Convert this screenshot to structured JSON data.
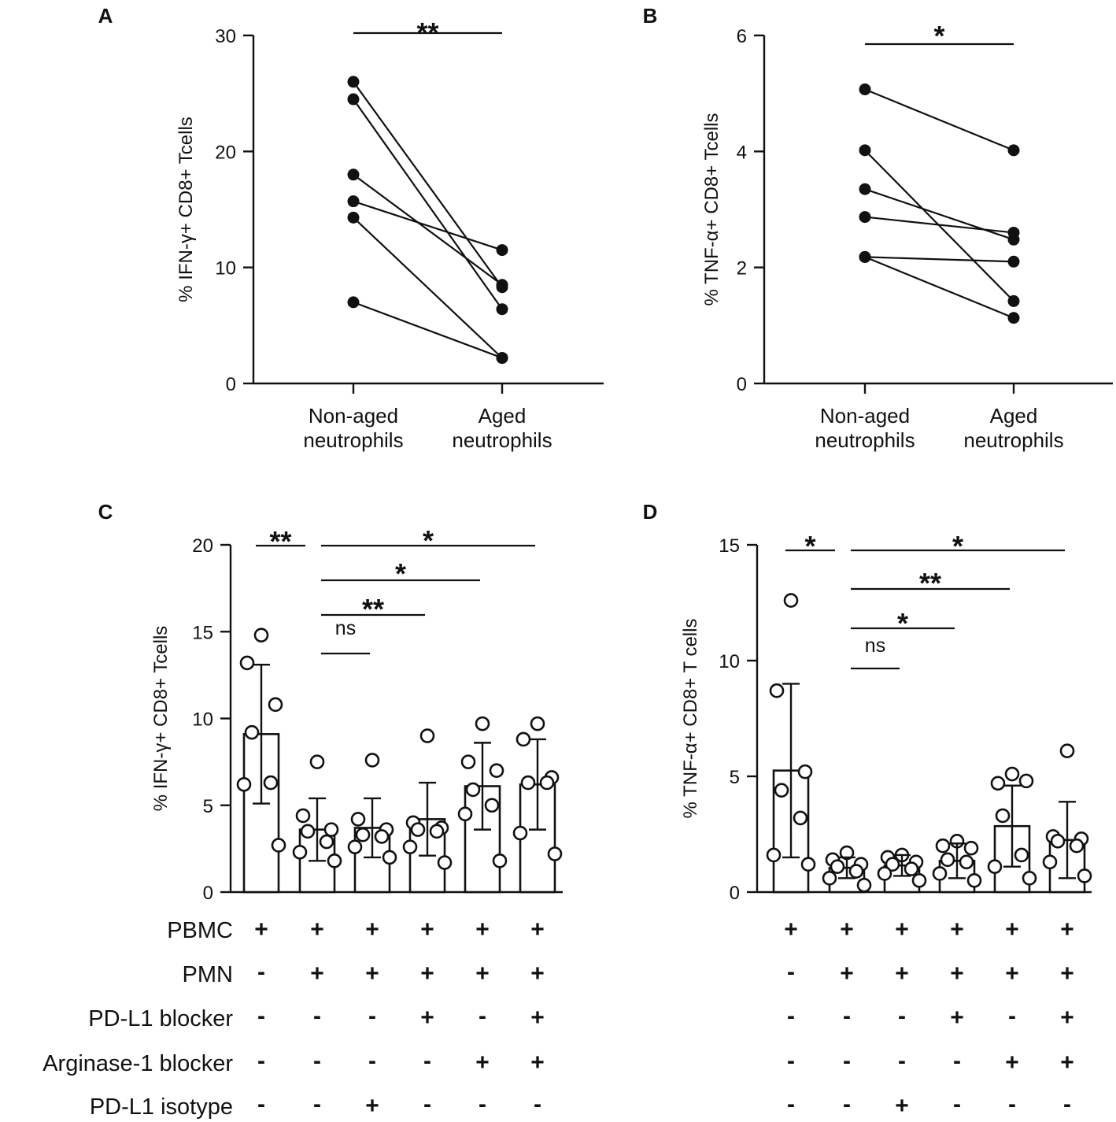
{
  "chart_data": [
    {
      "panel": "A",
      "type": "line",
      "ylabel": "% IFN-γ+  CD8+ Tcells",
      "ylim": [
        0,
        30
      ],
      "yticks": [
        0,
        10,
        20,
        30
      ],
      "categories": [
        "Non-aged\nneutrophils",
        "Aged\nneutrophils"
      ],
      "pairs": [
        [
          26,
          8.3
        ],
        [
          24.5,
          6.4
        ],
        [
          18,
          8.5
        ],
        [
          15.7,
          11.5
        ],
        [
          14.3,
          2.2
        ],
        [
          7,
          2.2
        ]
      ],
      "significance": [
        {
          "from": 0,
          "to": 1,
          "label": "**"
        }
      ]
    },
    {
      "panel": "B",
      "type": "line",
      "ylabel": "% TNF-α+ CD8+ Tcells",
      "ylim": [
        0,
        6
      ],
      "yticks": [
        0,
        2,
        4,
        6
      ],
      "categories": [
        "Non-aged\nneutrophils",
        "Aged\nneutrophils"
      ],
      "pairs": [
        [
          5.07,
          4.02
        ],
        [
          4.02,
          1.42
        ],
        [
          3.35,
          2.48
        ],
        [
          2.87,
          2.6
        ],
        [
          2.18,
          2.1
        ],
        [
          2.18,
          1.13
        ]
      ],
      "significance": [
        {
          "from": 0,
          "to": 1,
          "label": "*"
        }
      ]
    },
    {
      "panel": "C",
      "type": "bar",
      "ylabel": "% IFN-γ+  CD8+ Tcells",
      "ylim": [
        0,
        20
      ],
      "yticks": [
        0,
        5,
        10,
        15,
        20
      ],
      "groups": 6,
      "means": [
        9.1,
        3.6,
        3.7,
        4.2,
        6.1,
        6.2
      ],
      "sd": [
        4.0,
        1.8,
        1.7,
        2.1,
        2.5,
        2.6
      ],
      "points": [
        [
          14.8,
          13.2,
          10.8,
          9.2,
          6.3,
          6.2,
          2.7
        ],
        [
          7.5,
          4.4,
          3.6,
          3.5,
          2.9,
          2.3,
          1.8
        ],
        [
          7.6,
          4.2,
          3.6,
          3.3,
          3.2,
          2.6,
          2.0
        ],
        [
          9.0,
          4.0,
          3.7,
          3.6,
          3.5,
          2.6,
          1.7
        ],
        [
          9.7,
          7.5,
          7.0,
          5.9,
          5.0,
          4.5,
          1.8
        ],
        [
          9.7,
          8.8,
          6.6,
          6.3,
          6.3,
          3.4,
          2.2
        ]
      ],
      "significance": [
        {
          "from": 0,
          "to": 1,
          "label": "**"
        },
        {
          "from": 1,
          "to": 2,
          "label": "ns"
        },
        {
          "from": 1,
          "to": 3,
          "label": "**"
        },
        {
          "from": 1,
          "to": 4,
          "label": "*"
        },
        {
          "from": 1,
          "to": 5,
          "label": "*"
        }
      ]
    },
    {
      "panel": "D",
      "type": "bar",
      "ylabel": "% TNF-α+ CD8+ T cells",
      "ylim": [
        0,
        15
      ],
      "yticks": [
        0,
        5,
        10,
        15
      ],
      "groups": 6,
      "means": [
        5.25,
        1.05,
        1.15,
        1.35,
        2.85,
        2.25
      ],
      "sd": [
        3.75,
        0.45,
        0.45,
        0.75,
        1.75,
        1.65
      ],
      "points": [
        [
          12.6,
          8.7,
          5.2,
          4.4,
          3.2,
          1.6,
          1.2
        ],
        [
          1.7,
          1.4,
          1.2,
          1.1,
          0.9,
          0.6,
          0.3
        ],
        [
          1.6,
          1.5,
          1.3,
          1.2,
          1.0,
          0.8,
          0.5
        ],
        [
          2.2,
          2.0,
          1.9,
          1.4,
          1.3,
          0.8,
          0.5
        ],
        [
          5.1,
          4.7,
          4.8,
          3.3,
          1.6,
          1.1,
          0.6
        ],
        [
          6.1,
          2.4,
          2.3,
          2.2,
          2.0,
          1.3,
          0.7
        ]
      ],
      "significance": [
        {
          "from": 0,
          "to": 1,
          "label": "*"
        },
        {
          "from": 1,
          "to": 2,
          "label": "ns"
        },
        {
          "from": 1,
          "to": 3,
          "label": "*"
        },
        {
          "from": 1,
          "to": 4,
          "label": "**"
        },
        {
          "from": 1,
          "to": 5,
          "label": "*"
        }
      ]
    }
  ],
  "conditions": {
    "rows": [
      "PBMC",
      "PMN",
      "PD-L1 blocker",
      "Arginase-1 blocker",
      "PD-L1 isotype"
    ],
    "matrix": [
      [
        "+",
        "+",
        "+",
        "+",
        "+",
        "+"
      ],
      [
        "-",
        "+",
        "+",
        "+",
        "+",
        "+"
      ],
      [
        "-",
        "-",
        "-",
        "+",
        "-",
        "+"
      ],
      [
        "-",
        "-",
        "-",
        "-",
        "+",
        "+"
      ],
      [
        "-",
        "-",
        "+",
        "-",
        "-",
        "-"
      ]
    ]
  }
}
